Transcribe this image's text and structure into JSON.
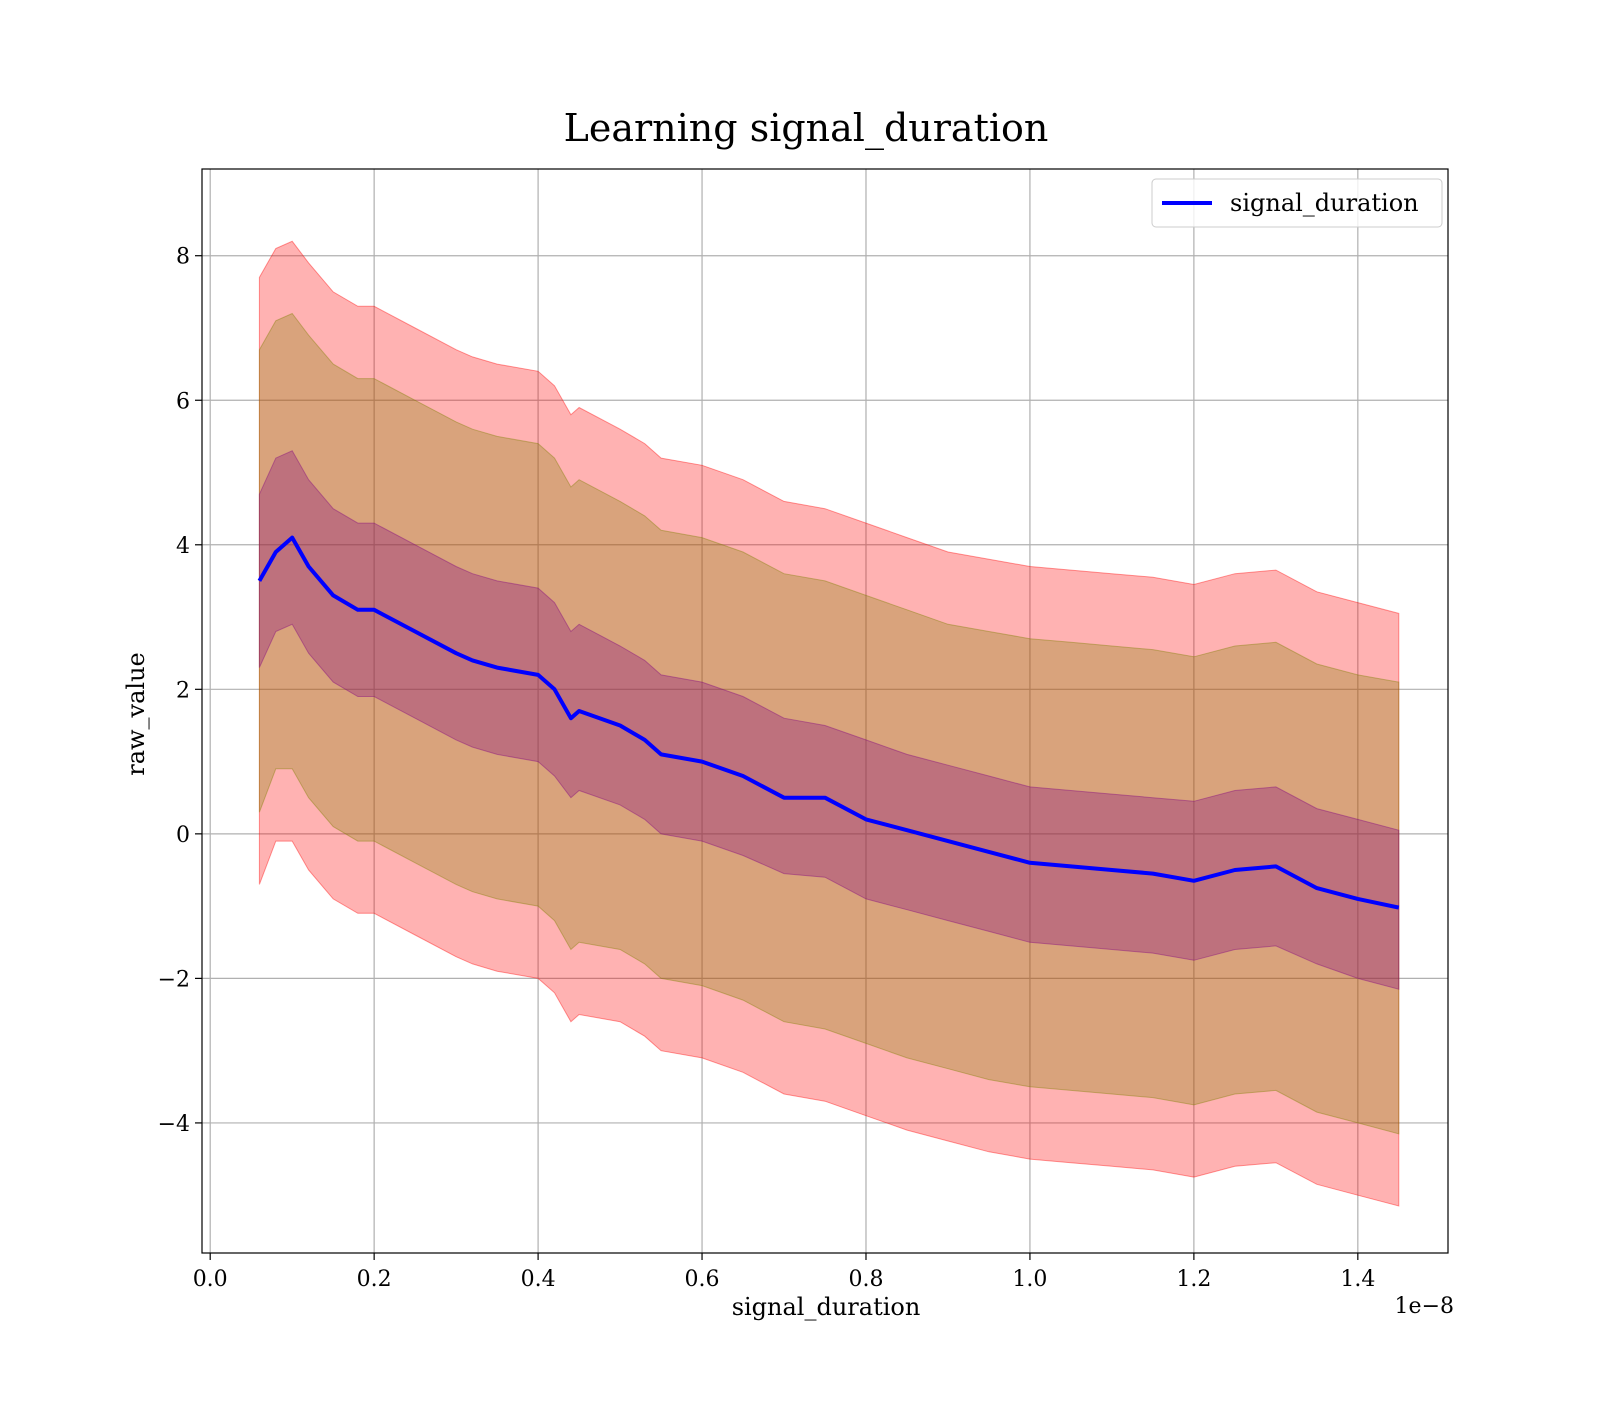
{
  "chart_data": {
    "type": "area",
    "title": "Learning signal_duration",
    "xlabel": "signal_duration",
    "ylabel": "raw_value",
    "x_offset_text": "1e−8",
    "xlim": [
      -0.01,
      1.51
    ],
    "ylim": [
      -5.8,
      9.2
    ],
    "x_ticks": [
      0.0,
      0.2,
      0.4,
      0.6,
      0.8,
      1.0,
      1.2,
      1.4
    ],
    "x_tick_labels": [
      "0.0",
      "0.2",
      "0.4",
      "0.6",
      "0.8",
      "1.0",
      "1.2",
      "1.4"
    ],
    "y_ticks": [
      -4,
      -2,
      0,
      2,
      4,
      6,
      8
    ],
    "y_tick_labels": [
      "−4",
      "−2",
      "0",
      "2",
      "4",
      "6",
      "8"
    ],
    "grid": true,
    "legend": {
      "position": "top-right",
      "entries": [
        "signal_duration"
      ]
    },
    "x": [
      0.06,
      0.08,
      0.1,
      0.12,
      0.15,
      0.18,
      0.2,
      0.25,
      0.3,
      0.32,
      0.35,
      0.4,
      0.42,
      0.44,
      0.45,
      0.5,
      0.53,
      0.55,
      0.6,
      0.65,
      0.7,
      0.75,
      0.8,
      0.85,
      0.9,
      0.95,
      1.0,
      1.05,
      1.1,
      1.15,
      1.2,
      1.25,
      1.3,
      1.35,
      1.4,
      1.45
    ],
    "series": [
      {
        "name": "signal_duration",
        "color": "#0000ff",
        "values": [
          3.5,
          3.9,
          4.1,
          3.7,
          3.3,
          3.1,
          3.1,
          2.8,
          2.5,
          2.4,
          2.3,
          2.2,
          2.0,
          1.6,
          1.7,
          1.5,
          1.3,
          1.1,
          1.0,
          0.8,
          0.5,
          0.5,
          0.2,
          0.05,
          -0.1,
          -0.25,
          -0.4,
          -0.45,
          -0.5,
          -0.55,
          -0.65,
          -0.5,
          -0.45,
          -0.75,
          -0.9,
          -1.02
        ],
        "band_1sd": {
          "color": "#800080",
          "lower": [
            2.3,
            2.8,
            2.9,
            2.5,
            2.1,
            1.9,
            1.9,
            1.6,
            1.3,
            1.2,
            1.1,
            1.0,
            0.8,
            0.5,
            0.6,
            0.4,
            0.2,
            0.0,
            -0.1,
            -0.3,
            -0.55,
            -0.6,
            -0.9,
            -1.05,
            -1.2,
            -1.35,
            -1.5,
            -1.55,
            -1.6,
            -1.65,
            -1.75,
            -1.6,
            -1.55,
            -1.8,
            -2.0,
            -2.15
          ],
          "upper": [
            4.7,
            5.2,
            5.3,
            4.9,
            4.5,
            4.3,
            4.3,
            4.0,
            3.7,
            3.6,
            3.5,
            3.4,
            3.2,
            2.8,
            2.9,
            2.6,
            2.4,
            2.2,
            2.1,
            1.9,
            1.6,
            1.5,
            1.3,
            1.1,
            0.95,
            0.8,
            0.65,
            0.6,
            0.55,
            0.5,
            0.45,
            0.6,
            0.65,
            0.35,
            0.2,
            0.05
          ]
        },
        "band_2sd": {
          "color": "#808000",
          "lower": [
            0.3,
            0.9,
            0.9,
            0.5,
            0.1,
            -0.1,
            -0.1,
            -0.4,
            -0.7,
            -0.8,
            -0.9,
            -1.0,
            -1.2,
            -1.6,
            -1.5,
            -1.6,
            -1.8,
            -2.0,
            -2.1,
            -2.3,
            -2.6,
            -2.7,
            -2.9,
            -3.1,
            -3.25,
            -3.4,
            -3.5,
            -3.55,
            -3.6,
            -3.65,
            -3.75,
            -3.6,
            -3.55,
            -3.85,
            -4.0,
            -4.15
          ],
          "upper": [
            6.7,
            7.1,
            7.2,
            6.9,
            6.5,
            6.3,
            6.3,
            6.0,
            5.7,
            5.6,
            5.5,
            5.4,
            5.2,
            4.8,
            4.9,
            4.6,
            4.4,
            4.2,
            4.1,
            3.9,
            3.6,
            3.5,
            3.3,
            3.1,
            2.9,
            2.8,
            2.7,
            2.65,
            2.6,
            2.55,
            2.45,
            2.6,
            2.65,
            2.35,
            2.2,
            2.1
          ]
        },
        "band_3sd": {
          "color": "#ff0000",
          "lower": [
            -0.7,
            -0.1,
            -0.1,
            -0.5,
            -0.9,
            -1.1,
            -1.1,
            -1.4,
            -1.7,
            -1.8,
            -1.9,
            -2.0,
            -2.2,
            -2.6,
            -2.5,
            -2.6,
            -2.8,
            -3.0,
            -3.1,
            -3.3,
            -3.6,
            -3.7,
            -3.9,
            -4.1,
            -4.25,
            -4.4,
            -4.5,
            -4.55,
            -4.6,
            -4.65,
            -4.75,
            -4.6,
            -4.55,
            -4.85,
            -5.0,
            -5.15
          ],
          "upper": [
            7.7,
            8.1,
            8.2,
            7.9,
            7.5,
            7.3,
            7.3,
            7.0,
            6.7,
            6.6,
            6.5,
            6.4,
            6.2,
            5.8,
            5.9,
            5.6,
            5.4,
            5.2,
            5.1,
            4.9,
            4.6,
            4.5,
            4.3,
            4.1,
            3.9,
            3.8,
            3.7,
            3.65,
            3.6,
            3.55,
            3.45,
            3.6,
            3.65,
            3.35,
            3.2,
            3.05
          ]
        }
      }
    ]
  }
}
